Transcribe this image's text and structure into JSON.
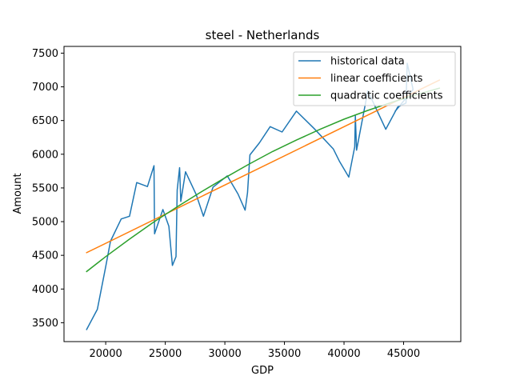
{
  "chart_data": {
    "type": "line",
    "title": "steel - Netherlands",
    "xlabel": "GDP",
    "ylabel": "Amount",
    "xlim": [
      16500,
      49800
    ],
    "ylim": [
      3220,
      7600
    ],
    "xticks": [
      20000,
      25000,
      30000,
      35000,
      40000,
      45000
    ],
    "yticks": [
      3500,
      4000,
      4500,
      5000,
      5500,
      6000,
      6500,
      7000,
      7500
    ],
    "grid": false,
    "legend_position": "top-right",
    "series": [
      {
        "name": "historical data",
        "color": "#1f77b4",
        "x": [
          18400,
          19300,
          20000,
          20400,
          21300,
          22000,
          22600,
          23500,
          24050,
          24100,
          24800,
          25300,
          25600,
          25900,
          26000,
          26200,
          26300,
          26700,
          27600,
          28200,
          29000,
          30200,
          31100,
          31700,
          31900,
          32100,
          32900,
          33800,
          34800,
          36000,
          37500,
          39100,
          39600,
          40400,
          40900,
          40950,
          41050,
          42000,
          43500,
          44500,
          45200,
          45300,
          45800,
          44300
        ],
        "y": [
          3400,
          3700,
          4330,
          4710,
          5040,
          5080,
          5580,
          5520,
          5830,
          4820,
          5180,
          4930,
          4350,
          4480,
          5470,
          5800,
          5300,
          5740,
          5400,
          5080,
          5510,
          5680,
          5410,
          5170,
          5430,
          5990,
          6170,
          6410,
          6330,
          6640,
          6380,
          6080,
          5900,
          5660,
          6110,
          6570,
          6060,
          6940,
          6370,
          6700,
          6760,
          7350,
          6960,
          6640
        ]
      },
      {
        "name": "linear coefficients",
        "color": "#ff7f0e",
        "x": [
          18400,
          48000
        ],
        "y": [
          4540,
          7100
        ]
      },
      {
        "name": "quadratic coefficients",
        "color": "#2ca02c",
        "x": [
          18400,
          20000,
          22000,
          24000,
          26000,
          28000,
          30000,
          32000,
          34000,
          36000,
          38000,
          40000,
          42000,
          44000,
          46000,
          48000
        ],
        "y": [
          4260,
          4480,
          4740,
          4990,
          5220,
          5440,
          5650,
          5850,
          6040,
          6210,
          6370,
          6520,
          6650,
          6770,
          6880,
          6980
        ]
      }
    ]
  }
}
